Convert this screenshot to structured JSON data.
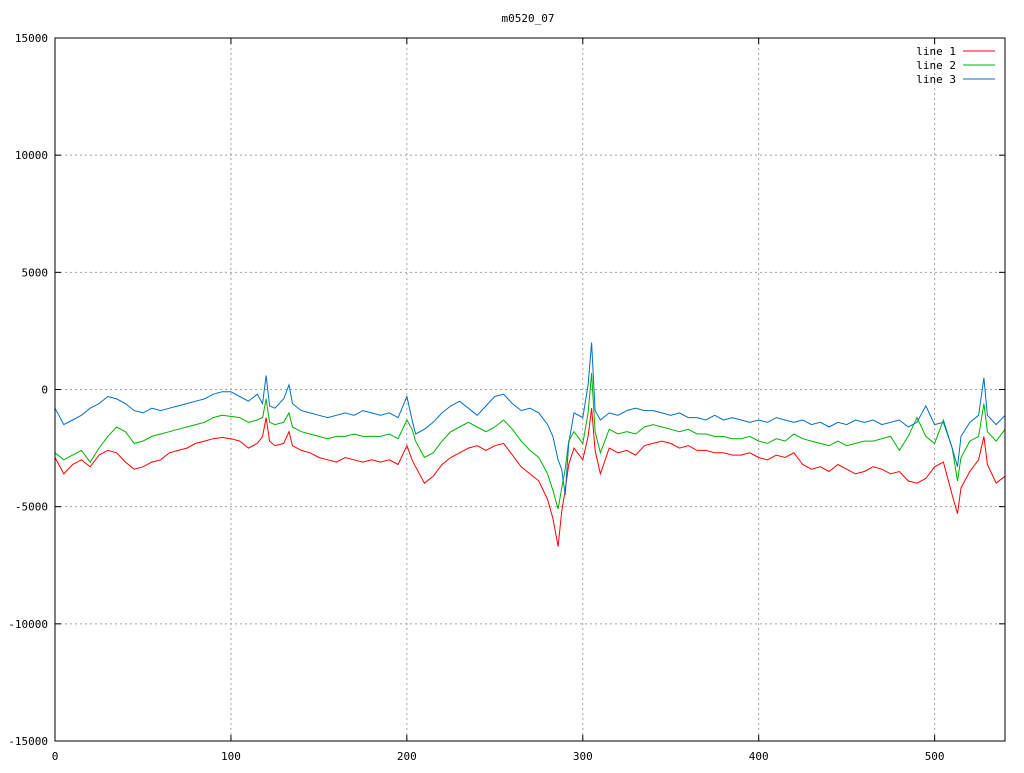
{
  "chart_data": {
    "type": "line",
    "title": "m0520_07",
    "xlabel": "",
    "ylabel": "",
    "xlim": [
      0,
      540
    ],
    "ylim": [
      -15000,
      15000
    ],
    "x_ticks": [
      0,
      100,
      200,
      300,
      400,
      500
    ],
    "y_ticks": [
      -15000,
      -10000,
      -5000,
      0,
      5000,
      10000,
      15000
    ],
    "grid": true,
    "legend_position": "top-right",
    "series": [
      {
        "name": "line 1",
        "color": "#ff0000",
        "x": [
          0,
          5,
          10,
          15,
          20,
          25,
          30,
          35,
          40,
          45,
          50,
          55,
          60,
          65,
          70,
          75,
          80,
          85,
          90,
          95,
          100,
          105,
          110,
          115,
          118,
          120,
          122,
          125,
          130,
          133,
          135,
          140,
          145,
          150,
          155,
          160,
          165,
          170,
          175,
          180,
          185,
          190,
          195,
          200,
          203,
          205,
          210,
          215,
          220,
          225,
          230,
          235,
          240,
          245,
          250,
          255,
          260,
          265,
          270,
          275,
          280,
          283,
          286,
          288,
          290,
          292,
          295,
          300,
          303,
          305,
          307,
          310,
          315,
          320,
          325,
          330,
          335,
          340,
          345,
          350,
          355,
          360,
          365,
          370,
          375,
          380,
          385,
          390,
          395,
          400,
          405,
          410,
          415,
          420,
          425,
          430,
          435,
          440,
          445,
          450,
          455,
          460,
          465,
          470,
          475,
          480,
          485,
          490,
          495,
          500,
          505,
          510,
          513,
          515,
          520,
          525,
          528,
          530,
          535,
          540
        ],
        "values": [
          -2900,
          -3600,
          -3200,
          -3000,
          -3300,
          -2800,
          -2600,
          -2700,
          -3100,
          -3400,
          -3300,
          -3100,
          -3000,
          -2700,
          -2600,
          -2500,
          -2300,
          -2200,
          -2100,
          -2050,
          -2100,
          -2200,
          -2500,
          -2300,
          -2000,
          -1200,
          -2200,
          -2400,
          -2300,
          -1800,
          -2400,
          -2600,
          -2700,
          -2900,
          -3000,
          -3100,
          -2900,
          -3000,
          -3100,
          -3000,
          -3100,
          -3000,
          -3200,
          -2400,
          -3000,
          -3300,
          -4000,
          -3700,
          -3200,
          -2900,
          -2700,
          -2500,
          -2400,
          -2600,
          -2400,
          -2300,
          -2800,
          -3300,
          -3600,
          -3900,
          -4700,
          -5500,
          -6700,
          -5200,
          -4300,
          -3200,
          -2500,
          -3000,
          -2000,
          -800,
          -2600,
          -3600,
          -2500,
          -2700,
          -2600,
          -2800,
          -2400,
          -2300,
          -2200,
          -2300,
          -2500,
          -2400,
          -2600,
          -2600,
          -2700,
          -2700,
          -2800,
          -2800,
          -2700,
          -2900,
          -3000,
          -2800,
          -2900,
          -2700,
          -3200,
          -3400,
          -3300,
          -3500,
          -3200,
          -3400,
          -3600,
          -3500,
          -3300,
          -3400,
          -3600,
          -3500,
          -3900,
          -4000,
          -3800,
          -3300,
          -3100,
          -4500,
          -5300,
          -4200,
          -3500,
          -3000,
          -2000,
          -3200,
          -4000,
          -3700
        ]
      },
      {
        "name": "line 2",
        "color": "#00b000",
        "x": [
          0,
          5,
          10,
          15,
          20,
          25,
          30,
          35,
          40,
          45,
          50,
          55,
          60,
          65,
          70,
          75,
          80,
          85,
          90,
          95,
          100,
          105,
          110,
          115,
          118,
          120,
          122,
          125,
          130,
          133,
          135,
          140,
          145,
          150,
          155,
          160,
          165,
          170,
          175,
          180,
          185,
          190,
          195,
          200,
          203,
          205,
          210,
          215,
          220,
          225,
          230,
          235,
          240,
          245,
          250,
          255,
          260,
          265,
          270,
          275,
          280,
          283,
          286,
          288,
          290,
          292,
          295,
          300,
          303,
          305,
          307,
          310,
          315,
          320,
          325,
          330,
          335,
          340,
          345,
          350,
          355,
          360,
          365,
          370,
          375,
          380,
          385,
          390,
          395,
          400,
          405,
          410,
          415,
          420,
          425,
          430,
          435,
          440,
          445,
          450,
          455,
          460,
          465,
          470,
          475,
          480,
          485,
          490,
          495,
          500,
          505,
          510,
          513,
          515,
          520,
          525,
          528,
          530,
          535,
          540
        ],
        "values": [
          -2700,
          -3000,
          -2800,
          -2600,
          -3100,
          -2500,
          -2000,
          -1600,
          -1800,
          -2300,
          -2200,
          -2000,
          -1900,
          -1800,
          -1700,
          -1600,
          -1500,
          -1400,
          -1200,
          -1100,
          -1150,
          -1200,
          -1400,
          -1300,
          -1200,
          -400,
          -1400,
          -1500,
          -1400,
          -1000,
          -1600,
          -1800,
          -1900,
          -2000,
          -2100,
          -2000,
          -2000,
          -1900,
          -2000,
          -2000,
          -2000,
          -1900,
          -2100,
          -1300,
          -1700,
          -2200,
          -2900,
          -2700,
          -2200,
          -1800,
          -1600,
          -1400,
          -1600,
          -1800,
          -1600,
          -1300,
          -1700,
          -2200,
          -2600,
          -2900,
          -3600,
          -4300,
          -5100,
          -4200,
          -3400,
          -2200,
          -1800,
          -2300,
          -1000,
          700,
          -1800,
          -2700,
          -1700,
          -1900,
          -1800,
          -1900,
          -1600,
          -1500,
          -1600,
          -1700,
          -1800,
          -1700,
          -1900,
          -1900,
          -2000,
          -2000,
          -2100,
          -2100,
          -2000,
          -2200,
          -2300,
          -2100,
          -2200,
          -1900,
          -2100,
          -2200,
          -2300,
          -2400,
          -2200,
          -2400,
          -2300,
          -2200,
          -2200,
          -2100,
          -2000,
          -2600,
          -2000,
          -1200,
          -2000,
          -2300,
          -1300,
          -2500,
          -3900,
          -2900,
          -2200,
          -2000,
          -600,
          -1800,
          -2200,
          -1700
        ]
      },
      {
        "name": "line 3",
        "color": "#0070c0",
        "x": [
          0,
          5,
          10,
          15,
          20,
          25,
          30,
          35,
          40,
          45,
          50,
          55,
          60,
          65,
          70,
          75,
          80,
          85,
          90,
          95,
          100,
          105,
          110,
          115,
          118,
          120,
          122,
          125,
          130,
          133,
          135,
          140,
          145,
          150,
          155,
          160,
          165,
          170,
          175,
          180,
          185,
          190,
          195,
          200,
          203,
          205,
          210,
          215,
          220,
          225,
          230,
          235,
          240,
          245,
          250,
          255,
          260,
          265,
          270,
          275,
          280,
          283,
          286,
          288,
          290,
          292,
          295,
          300,
          303,
          305,
          307,
          310,
          315,
          320,
          325,
          330,
          335,
          340,
          345,
          350,
          355,
          360,
          365,
          370,
          375,
          380,
          385,
          390,
          395,
          400,
          405,
          410,
          415,
          420,
          425,
          430,
          435,
          440,
          445,
          450,
          455,
          460,
          465,
          470,
          475,
          480,
          485,
          490,
          495,
          500,
          505,
          510,
          513,
          515,
          520,
          525,
          528,
          530,
          535,
          540
        ],
        "values": [
          -800,
          -1500,
          -1300,
          -1100,
          -800,
          -600,
          -300,
          -400,
          -600,
          -900,
          -1000,
          -800,
          -900,
          -800,
          -700,
          -600,
          -500,
          -400,
          -200,
          -100,
          -100,
          -300,
          -500,
          -200,
          -600,
          600,
          -700,
          -800,
          -400,
          200,
          -600,
          -900,
          -1000,
          -1100,
          -1200,
          -1100,
          -1000,
          -1100,
          -900,
          -1000,
          -1100,
          -1000,
          -1200,
          -300,
          -1300,
          -1900,
          -1700,
          -1400,
          -1000,
          -700,
          -500,
          -800,
          -1100,
          -700,
          -300,
          -200,
          -600,
          -900,
          -800,
          -1000,
          -1500,
          -2000,
          -3000,
          -3400,
          -4500,
          -2300,
          -1000,
          -1200,
          200,
          2000,
          -900,
          -1300,
          -1000,
          -1100,
          -900,
          -800,
          -900,
          -900,
          -1000,
          -1100,
          -1000,
          -1200,
          -1200,
          -1300,
          -1100,
          -1300,
          -1200,
          -1300,
          -1400,
          -1300,
          -1400,
          -1200,
          -1300,
          -1400,
          -1300,
          -1500,
          -1400,
          -1600,
          -1400,
          -1500,
          -1300,
          -1400,
          -1300,
          -1500,
          -1400,
          -1300,
          -1600,
          -1400,
          -700,
          -1500,
          -1400,
          -2500,
          -3300,
          -2000,
          -1400,
          -1100,
          500,
          -1100,
          -1500,
          -1100
        ]
      }
    ]
  }
}
